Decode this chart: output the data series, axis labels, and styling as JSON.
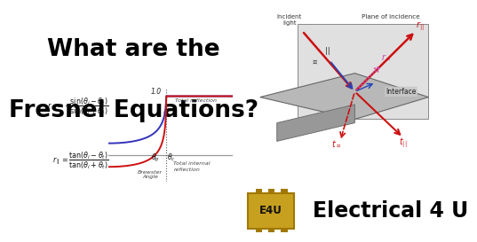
{
  "title_line1": "What are the",
  "title_line2": "Fresnel Equations?",
  "title_fontsize": 19,
  "title_color": "#000000",
  "bg_color": "#ffffff",
  "graph_bg": "#f5f5f5",
  "curve_perp_color": "#3333bb",
  "curve_par_color": "#cc1111",
  "axis_color": "#999999",
  "dotted_color": "#555555",
  "annotation_total_reflection": "Total reflection",
  "annotation_total_internal": "Total internal",
  "annotation_reflection2": "reflection",
  "annotation_brewster": "Brewster",
  "annotation_brewster2": "Angle",
  "label_1_0": "1.0",
  "e4u_color": "#c8a020",
  "e4u_border": "#a07800",
  "electrical4u_text": "Electrical 4 U",
  "electrical4u_fontsize": 17,
  "n1": 1.5,
  "n2": 1.0,
  "graph_xlim": [
    0,
    1
  ],
  "graph_ylim": [
    -0.45,
    1.15
  ],
  "plane1_color": "#d8d8d8",
  "plane2_color": "#b0b0b0",
  "plane3_color": "#909090",
  "incident_color": "#cc1111",
  "blue_arrow_color": "#2244bb"
}
